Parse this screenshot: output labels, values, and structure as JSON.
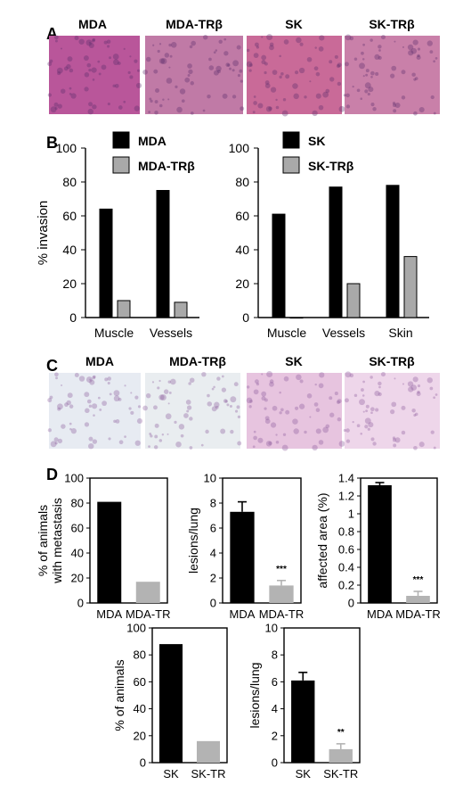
{
  "panels": {
    "A": {
      "letter": "A",
      "images": [
        {
          "label": "MDA",
          "tint": "#b9569a"
        },
        {
          "label": "MDA-TRβ",
          "tint": "#c07aa6"
        },
        {
          "label": "SK",
          "tint": "#c96a98"
        },
        {
          "label": "SK-TRβ",
          "tint": "#c980a9"
        }
      ]
    },
    "B": {
      "letter": "B"
    },
    "C": {
      "letter": "C",
      "images": [
        {
          "label": "MDA",
          "tint": "#e7ebf2"
        },
        {
          "label": "MDA-TRβ",
          "tint": "#e9edf0"
        },
        {
          "label": "SK",
          "tint": "#e7c4df"
        },
        {
          "label": "SK-TRβ",
          "tint": "#eed6ea"
        }
      ]
    },
    "D": {
      "letter": "D"
    }
  },
  "colors": {
    "black_bar": "#000000",
    "gray_bar": "#a9a9a9",
    "gray_bar_D": "#b3b3b3"
  },
  "chart_data": [
    {
      "id": "B-left",
      "type": "bar",
      "categories": [
        "Muscle",
        "Vessels"
      ],
      "series": [
        {
          "name": "MDA",
          "values": [
            64,
            75
          ],
          "color": "#000000"
        },
        {
          "name": "MDA-TRβ",
          "values": [
            10,
            9
          ],
          "color": "#a9a9a9"
        }
      ],
      "ylabel": "% invasion",
      "ylim": [
        0,
        100
      ],
      "yticks": [
        0,
        20,
        40,
        60,
        80,
        100
      ],
      "legend": "top",
      "frame": "left-bottom"
    },
    {
      "id": "B-right",
      "type": "bar",
      "categories": [
        "Muscle",
        "Vessels",
        "Skin"
      ],
      "series": [
        {
          "name": "SK",
          "values": [
            61,
            77,
            78
          ],
          "color": "#000000"
        },
        {
          "name": "SK-TRβ",
          "values": [
            0,
            20,
            36
          ],
          "color": "#a9a9a9"
        }
      ],
      "ylabel": "",
      "ylim": [
        0,
        100
      ],
      "yticks": [
        0,
        20,
        40,
        60,
        80,
        100
      ],
      "legend": "top",
      "frame": "left-bottom"
    },
    {
      "id": "D1",
      "type": "bar",
      "categories": [
        "MDA",
        "MDA-TR"
      ],
      "values": [
        81,
        17
      ],
      "colors": [
        "#000000",
        "#b3b3b3"
      ],
      "ylabel": "% of animals\nwith metastasis",
      "ylim": [
        0,
        100
      ],
      "yticks": [
        0,
        20,
        40,
        60,
        80,
        100
      ],
      "tick_labels": [
        "0",
        "20",
        "40",
        "60",
        "80",
        "100"
      ],
      "frame": "box"
    },
    {
      "id": "D2",
      "type": "bar",
      "categories": [
        "MDA",
        "MDA-TR"
      ],
      "values": [
        7.3,
        1.4
      ],
      "errors": [
        0.8,
        0.4
      ],
      "colors": [
        "#000000",
        "#b3b3b3"
      ],
      "annotations": [
        "",
        "***"
      ],
      "ylabel": "lesions/lung",
      "ylim": [
        0,
        10
      ],
      "yticks": [
        0,
        2,
        4,
        6,
        8,
        10
      ],
      "tick_labels": [
        "0",
        "2",
        "4",
        "6",
        "8",
        "10"
      ],
      "frame": "box"
    },
    {
      "id": "D3",
      "type": "bar",
      "categories": [
        "MDA",
        "MDA-TR"
      ],
      "values": [
        1.32,
        0.08
      ],
      "errors": [
        0.03,
        0.05
      ],
      "colors": [
        "#000000",
        "#b3b3b3"
      ],
      "annotations": [
        "",
        "***"
      ],
      "ylabel": "affected area (%)",
      "ylim": [
        0,
        1.4
      ],
      "yticks": [
        0,
        0.2,
        0.4,
        0.6,
        0.8,
        1.0,
        1.2,
        1.4
      ],
      "tick_labels": [
        "0",
        "0.2",
        "0.4",
        "0.6",
        "0.8",
        "1",
        "1.2",
        "1.4"
      ],
      "frame": "box"
    },
    {
      "id": "D4",
      "type": "bar",
      "categories": [
        "SK",
        "SK-TR"
      ],
      "values": [
        88,
        16
      ],
      "colors": [
        "#000000",
        "#b3b3b3"
      ],
      "ylabel": "% of animals",
      "ylim": [
        0,
        100
      ],
      "yticks": [
        0,
        20,
        40,
        60,
        80,
        100
      ],
      "tick_labels": [
        "0",
        "20",
        "40",
        "60",
        "80",
        "100"
      ],
      "frame": "box"
    },
    {
      "id": "D5",
      "type": "bar",
      "categories": [
        "SK",
        "SK-TR"
      ],
      "values": [
        6.1,
        1.0
      ],
      "errors": [
        0.6,
        0.4
      ],
      "colors": [
        "#000000",
        "#b3b3b3"
      ],
      "annotations": [
        "",
        "**"
      ],
      "ylabel": "lesions/lung",
      "ylim": [
        0,
        10
      ],
      "yticks": [
        0,
        2,
        4,
        6,
        8,
        10
      ],
      "tick_labels": [
        "0",
        "2",
        "4",
        "6",
        "8",
        "10"
      ],
      "frame": "box"
    }
  ]
}
